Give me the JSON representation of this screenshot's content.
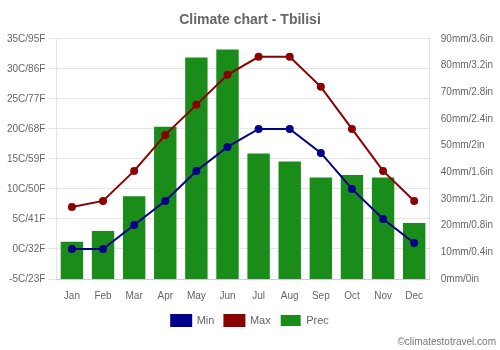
{
  "chart_data": {
    "type": "bar",
    "title": "Climate chart - Tbilisi",
    "annotations": [
      "©climatestotravel.com"
    ],
    "categories": [
      "Jan",
      "Feb",
      "Mar",
      "Apr",
      "May",
      "Jun",
      "Jul",
      "Aug",
      "Sep",
      "Oct",
      "Nov",
      "Dec"
    ],
    "series": [
      {
        "name": "Prec",
        "type": "bar",
        "axis": "y2",
        "color": "#1a8c1a",
        "values": [
          14,
          18,
          31,
          57,
          83,
          86,
          47,
          44,
          38,
          39,
          38,
          21
        ]
      },
      {
        "name": "Min",
        "type": "line",
        "color": "#00008b",
        "marker": "circle",
        "values": [
          0,
          0,
          4,
          8,
          13,
          17,
          20,
          20,
          16,
          10,
          5,
          1
        ]
      },
      {
        "name": "Max",
        "type": "line",
        "color": "#8b0000",
        "marker": "circle",
        "values": [
          7,
          8,
          13,
          19,
          24,
          29,
          32,
          32,
          27,
          20,
          13,
          8
        ]
      }
    ],
    "ylim": [
      -5,
      35
    ],
    "yticks": [
      {
        "value": -5,
        "label": "-5C/23F"
      },
      {
        "value": 0,
        "label": "0C/32F"
      },
      {
        "value": 5,
        "label": "5C/41F"
      },
      {
        "value": 10,
        "label": "10C/50F"
      },
      {
        "value": 15,
        "label": "15C/59F"
      },
      {
        "value": 20,
        "label": "20C/68F"
      },
      {
        "value": 25,
        "label": "25C/77F"
      },
      {
        "value": 30,
        "label": "30C/86F"
      },
      {
        "value": 35,
        "label": "35C/95F"
      }
    ],
    "y2lim": [
      0,
      90
    ],
    "y2ticks": [
      {
        "value": 0,
        "label": "0mm/0in"
      },
      {
        "value": 10,
        "label": "10mm/0.4in"
      },
      {
        "value": 20,
        "label": "20mm/0.8in"
      },
      {
        "value": 30,
        "label": "30mm/1.2in"
      },
      {
        "value": 40,
        "label": "40mm/1.6in"
      },
      {
        "value": 50,
        "label": "50mm/2in"
      },
      {
        "value": 60,
        "label": "60mm/2.4in"
      },
      {
        "value": 70,
        "label": "70mm/2.8in"
      },
      {
        "value": 80,
        "label": "80mm/3.2in"
      },
      {
        "value": 90,
        "label": "90mm/3.6in"
      }
    ],
    "grid": true,
    "legend": "bottom"
  }
}
